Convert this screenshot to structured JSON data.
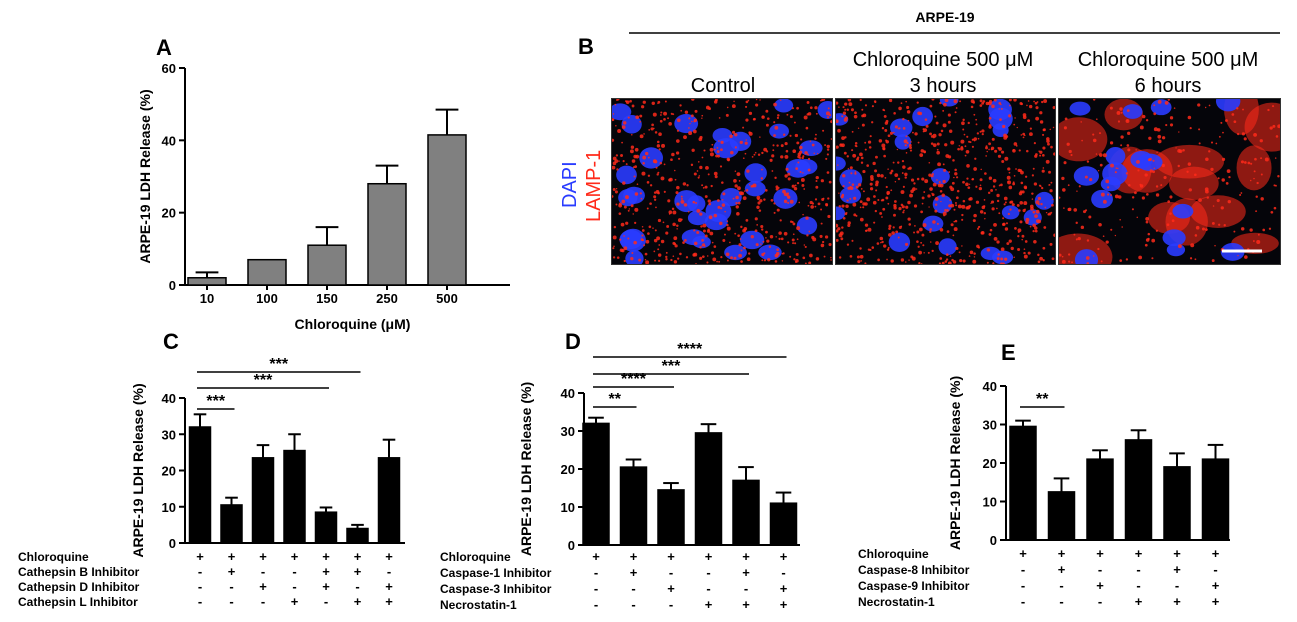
{
  "panels": {
    "A": "A",
    "B": "B",
    "C": "C",
    "D": "D",
    "E": "E"
  },
  "images": {
    "header": "ARPE-19",
    "stain_dapi": "DAPI",
    "stain_lamp": "LAMP-1",
    "titles": [
      [
        "Control"
      ],
      [
        "Chloroquine 500 μM",
        "3 hours"
      ],
      [
        "Chloroquine 500 μM",
        "6 hours"
      ]
    ],
    "colors": {
      "dapi": "#2a3cff",
      "lamp": "#ff2a1a"
    }
  },
  "chart_data": [
    {
      "panel": "A",
      "type": "bar",
      "categories": [
        "10",
        "100",
        "150",
        "250",
        "500"
      ],
      "values": [
        2,
        7,
        11,
        28,
        41.5
      ],
      "errors": [
        1.5,
        0,
        5,
        5,
        7
      ],
      "ylabel": "ARPE-19 LDH Release (%)",
      "xlabel": "Chloroquine (μM)",
      "ylim": [
        0,
        60
      ],
      "yticks": [
        0,
        20,
        40,
        60
      ],
      "bar_color": "#808080"
    },
    {
      "panel": "C",
      "type": "bar",
      "values": [
        32,
        10.5,
        23.5,
        25.5,
        8.5,
        4,
        23.5
      ],
      "errors": [
        3.5,
        2,
        3.5,
        4.5,
        1.3,
        1,
        5
      ],
      "ylabel": "ARPE-19 LDH Release (%)",
      "ylim": [
        0,
        40
      ],
      "yticks": [
        0,
        10,
        20,
        30,
        40
      ],
      "bar_color": "#000000",
      "conditions": [
        {
          "label": "Chloroquine",
          "signs": [
            "+",
            "+",
            "+",
            "+",
            "+",
            "+",
            "+"
          ]
        },
        {
          "label": "Cathepsin B Inhibitor",
          "signs": [
            "-",
            "+",
            "-",
            "-",
            "+",
            "+",
            "-"
          ]
        },
        {
          "label": "Cathepsin D Inhibitor",
          "signs": [
            "-",
            "-",
            "+",
            "-",
            "+",
            "-",
            "+"
          ]
        },
        {
          "label": "Cathepsin L Inhibitor",
          "signs": [
            "-",
            "-",
            "-",
            "+",
            "-",
            "+",
            "+"
          ]
        }
      ],
      "significance": [
        {
          "from": 0,
          "to": 1,
          "label": "***"
        },
        {
          "from": 0,
          "to": 4,
          "label": "***"
        },
        {
          "from": 0,
          "to": 5,
          "label": "***"
        }
      ]
    },
    {
      "panel": "D",
      "type": "bar",
      "values": [
        32,
        20.5,
        14.5,
        29.5,
        17,
        11
      ],
      "errors": [
        1.5,
        2,
        1.8,
        2.3,
        3.5,
        2.8
      ],
      "ylabel": "ARPE-19 LDH Release (%)",
      "ylim": [
        0,
        40
      ],
      "yticks": [
        0,
        10,
        20,
        30,
        40
      ],
      "bar_color": "#000000",
      "conditions": [
        {
          "label": "Chloroquine",
          "signs": [
            "+",
            "+",
            "+",
            "+",
            "+",
            "+"
          ]
        },
        {
          "label": "Caspase-1 Inhibitor",
          "signs": [
            "-",
            "+",
            "-",
            "-",
            "+",
            "-"
          ]
        },
        {
          "label": "Caspase-3 Inhibitor",
          "signs": [
            "-",
            "-",
            "+",
            "-",
            "-",
            "+"
          ]
        },
        {
          "label": "Necrostatin-1",
          "signs": [
            "-",
            "-",
            "-",
            "+",
            "+",
            "+"
          ]
        }
      ],
      "significance": [
        {
          "from": 0,
          "to": 1,
          "label": "**"
        },
        {
          "from": 0,
          "to": 2,
          "label": "****"
        },
        {
          "from": 0,
          "to": 4,
          "label": "***"
        },
        {
          "from": 0,
          "to": 5,
          "label": "****"
        }
      ]
    },
    {
      "panel": "E",
      "type": "bar",
      "values": [
        29.5,
        12.5,
        21,
        26,
        19,
        21
      ],
      "errors": [
        1.5,
        3.5,
        2.3,
        2.5,
        3.5,
        3.7
      ],
      "ylabel": "ARPE-19 LDH Release (%)",
      "ylim": [
        0,
        40
      ],
      "yticks": [
        0,
        10,
        20,
        30,
        40
      ],
      "bar_color": "#000000",
      "conditions": [
        {
          "label": "Chloroquine",
          "signs": [
            "+",
            "+",
            "+",
            "+",
            "+",
            "+"
          ]
        },
        {
          "label": "Caspase-8 Inhibitor",
          "signs": [
            "-",
            "+",
            "-",
            "-",
            "+",
            "-"
          ]
        },
        {
          "label": "Caspase-9 Inhibitor",
          "signs": [
            "-",
            "-",
            "+",
            "-",
            "-",
            "+"
          ]
        },
        {
          "label": "Necrostatin-1",
          "signs": [
            "-",
            "-",
            "-",
            "+",
            "+",
            "+"
          ]
        }
      ],
      "significance": [
        {
          "from": 0,
          "to": 1,
          "label": "**"
        }
      ]
    }
  ]
}
